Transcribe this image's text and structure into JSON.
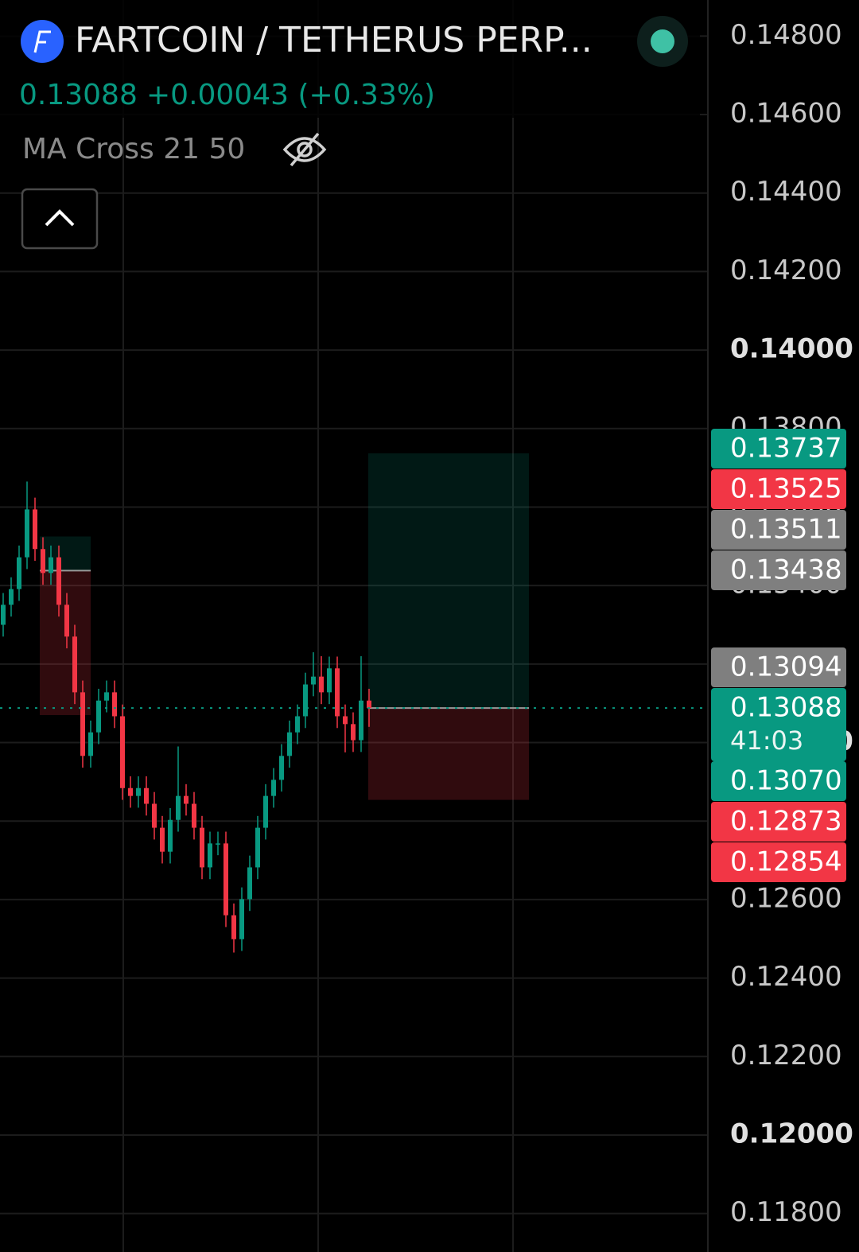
{
  "chart_data": {
    "type": "candlestick",
    "title": "FARTCOIN / TETHERUS PERP...",
    "last_price": "0.13088",
    "change": "+0.00043 (+0.33%)",
    "indicator": "MA Cross 21 50",
    "up_color": "#089981",
    "down_color": "#f23645",
    "ylim": [
      0.117,
      0.149
    ],
    "yticks": [
      {
        "value": 0.148,
        "label": "0.14800"
      },
      {
        "value": 0.146,
        "label": "0.14600"
      },
      {
        "value": 0.144,
        "label": "0.14400"
      },
      {
        "value": 0.142,
        "label": "0.14200"
      },
      {
        "value": 0.14,
        "label": "0.14000"
      },
      {
        "value": 0.138,
        "label": "0.13800"
      },
      {
        "value": 0.136,
        "label": "0.13600"
      },
      {
        "value": 0.134,
        "label": "0.13400"
      },
      {
        "value": 0.132,
        "label": "0.13200"
      },
      {
        "value": 0.13,
        "label": "0.13000"
      },
      {
        "value": 0.128,
        "label": "0.12800"
      },
      {
        "value": 0.126,
        "label": "0.12600"
      },
      {
        "value": 0.124,
        "label": "0.12400"
      },
      {
        "value": 0.122,
        "label": "0.12200"
      },
      {
        "value": 0.12,
        "label": "0.12000"
      },
      {
        "value": 0.118,
        "label": "0.11800"
      }
    ],
    "grid": true,
    "open": [
      0.133,
      0.13351,
      0.13391,
      0.13472,
      0.13594,
      0.13493,
      0.13432,
      0.13472,
      0.13351,
      0.1327,
      0.13128,
      0.12966,
      0.13026,
      0.13107,
      0.13128,
      0.13067,
      0.12884,
      0.12864,
      0.12884,
      0.12844,
      0.12783,
      0.12722,
      0.12803,
      0.12864,
      0.12844,
      0.12783,
      0.12682,
      0.12743,
      0.12743,
      0.1256,
      0.12499,
      0.12601,
      0.12682,
      0.12783,
      0.12864,
      0.12905,
      0.12966,
      0.13026,
      0.13067,
      0.13148,
      0.13168,
      0.13128,
      0.13189,
      0.13067,
      0.13047,
      0.13006,
      0.13107
    ],
    "high": [
      0.13381,
      0.13421,
      0.13502,
      0.13665,
      0.13624,
      0.13523,
      0.13502,
      0.13502,
      0.13381,
      0.133,
      0.13158,
      0.13056,
      0.13137,
      0.13158,
      0.13158,
      0.13097,
      0.12914,
      0.12914,
      0.12914,
      0.12874,
      0.12813,
      0.12833,
      0.1299,
      0.12894,
      0.12874,
      0.12813,
      0.12773,
      0.12773,
      0.12773,
      0.1259,
      0.12631,
      0.12712,
      0.12813,
      0.12894,
      0.12935,
      0.12996,
      0.13056,
      0.13097,
      0.13178,
      0.1323,
      0.1322,
      0.13219,
      0.13219,
      0.13097,
      0.13077,
      0.1322,
      0.13137
    ],
    "low": [
      0.1327,
      0.13321,
      0.13361,
      0.13442,
      0.13463,
      0.13402,
      0.13402,
      0.13321,
      0.1324,
      0.13098,
      0.12936,
      0.12936,
      0.12996,
      0.13077,
      0.13037,
      0.12854,
      0.12834,
      0.12834,
      0.12814,
      0.12753,
      0.12692,
      0.12692,
      0.12773,
      0.12814,
      0.12753,
      0.12652,
      0.12652,
      0.12713,
      0.1253,
      0.12465,
      0.12469,
      0.12571,
      0.12652,
      0.12753,
      0.12834,
      0.12875,
      0.12936,
      0.12996,
      0.13037,
      0.13118,
      0.13098,
      0.13098,
      0.13037,
      0.12975,
      0.12976,
      0.12976,
      0.1304
    ],
    "close": [
      0.13351,
      0.13391,
      0.13472,
      0.13594,
      0.13493,
      0.13432,
      0.13472,
      0.13351,
      0.1327,
      0.13128,
      0.12966,
      0.13026,
      0.13107,
      0.13128,
      0.13067,
      0.12884,
      0.12864,
      0.12884,
      0.12844,
      0.12783,
      0.12722,
      0.12803,
      0.12864,
      0.12844,
      0.12783,
      0.12682,
      0.12743,
      0.12743,
      0.1256,
      0.12499,
      0.12601,
      0.12682,
      0.12783,
      0.12864,
      0.12905,
      0.12966,
      0.13026,
      0.13067,
      0.13148,
      0.13168,
      0.13128,
      0.13189,
      0.13067,
      0.13047,
      0.13006,
      0.13107,
      0.13088
    ],
    "positions": [
      {
        "target": 0.13525,
        "entry": 0.13438,
        "stop": 0.1307
      },
      {
        "target": 0.13737,
        "entry": 0.13088,
        "stop": 0.12854
      }
    ],
    "price_labels": [
      {
        "value": 0.13737,
        "color": "#089981"
      },
      {
        "value": 0.13525,
        "color": "#f23645"
      },
      {
        "value": 0.13511,
        "color": "#7f7f7f"
      },
      {
        "value": 0.13438,
        "color": "#7f7f7f"
      },
      {
        "value": 0.13094,
        "color": "#7f7f7f"
      },
      {
        "value": 0.13088,
        "color": "#089981",
        "countdown": "41:03"
      },
      {
        "value": 0.1307,
        "label": "0.13070",
        "color": "#089981"
      },
      {
        "value": 0.12873,
        "color": "#f23645"
      },
      {
        "value": 0.12854,
        "color": "#f23645"
      }
    ]
  }
}
